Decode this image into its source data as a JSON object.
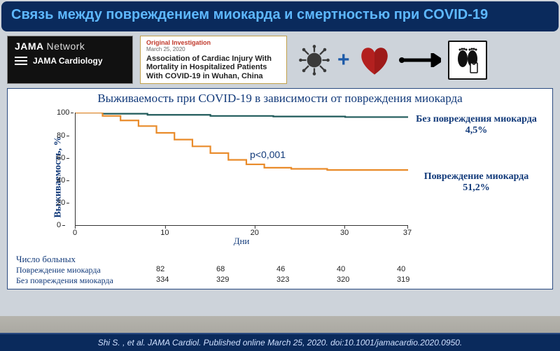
{
  "title": "Связь между повреждением миокарда и смертностью при COVID-19",
  "jama": {
    "brand": "JAMA",
    "network": "Network",
    "sub": "JAMA Cardiology"
  },
  "paper": {
    "tag": "Original Investigation",
    "date": "March 25, 2020",
    "title": "Association of Cardiac Injury With Mortality in Hospitalized Patients With COVID-19 in Wuhan, China"
  },
  "chart": {
    "title": "Выживаемость при COVID-19 в зависимости от повреждения миокарда",
    "ylabel": "Выживаемость, %",
    "xlabel": "Дни",
    "ylim": [
      0,
      100
    ],
    "ytick_step": 20,
    "xticks": [
      0,
      10,
      20,
      30,
      37
    ],
    "colors": {
      "no_injury": "#1f5a5a",
      "injury": "#e98b2a",
      "axis": "#333333"
    },
    "series": {
      "no_injury": {
        "label": "Без повреждения миокарда",
        "pct": "4,5%",
        "points": [
          [
            0,
            100
          ],
          [
            3,
            99
          ],
          [
            8,
            98
          ],
          [
            15,
            97
          ],
          [
            22,
            96.5
          ],
          [
            30,
            96
          ],
          [
            37,
            95.5
          ]
        ]
      },
      "injury": {
        "label": "Повреждение миокарда",
        "pct": "51,2%",
        "points": [
          [
            0,
            100
          ],
          [
            3,
            97
          ],
          [
            5,
            93
          ],
          [
            7,
            88
          ],
          [
            9,
            82
          ],
          [
            11,
            76
          ],
          [
            13,
            70
          ],
          [
            15,
            64
          ],
          [
            17,
            58
          ],
          [
            19,
            54
          ],
          [
            21,
            51
          ],
          [
            24,
            50
          ],
          [
            28,
            49
          ],
          [
            33,
            49
          ],
          [
            37,
            48.8
          ]
        ]
      }
    },
    "pvalue": "p<0,001"
  },
  "risk": {
    "header": "Число больных",
    "rows": [
      {
        "label": "Повреждение миокарда",
        "values": [
          "82",
          "68",
          "46",
          "40",
          "40"
        ]
      },
      {
        "label": "Без повреждения миокарда",
        "values": [
          "334",
          "329",
          "323",
          "320",
          "319"
        ]
      }
    ]
  },
  "citation": "Shi S. , et al. JAMA Cardiol. Published online March 25, 2020. doi:10.1001/jamacardio.2020.0950."
}
